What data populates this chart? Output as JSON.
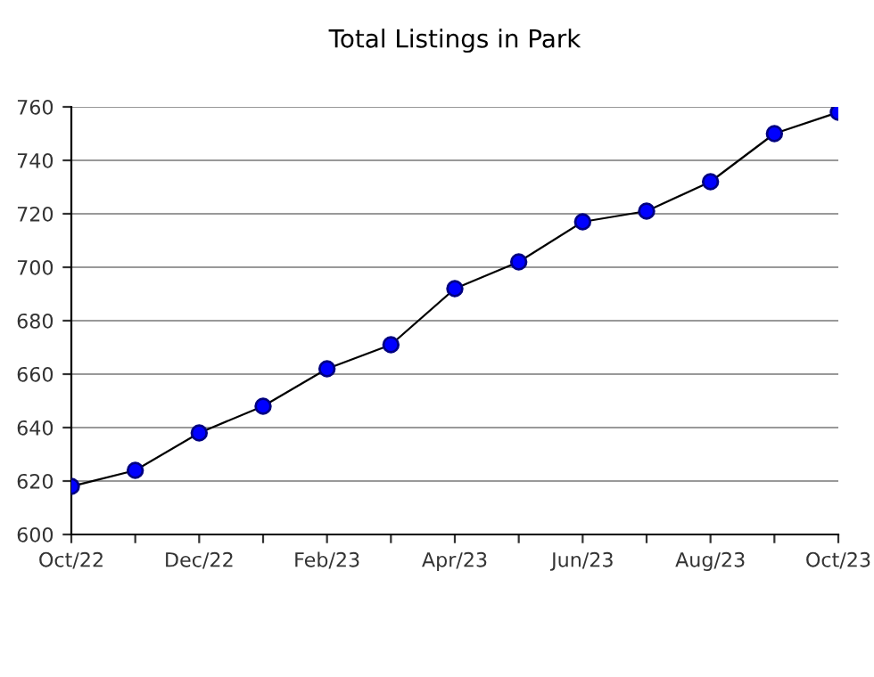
{
  "chart_data": {
    "type": "line",
    "title": "Total Listings in Park",
    "categories": [
      "Oct/22",
      null,
      "Dec/22",
      null,
      "Feb/23",
      null,
      "Apr/23",
      null,
      "Jun/23",
      null,
      "Aug/23",
      null,
      "Oct/23"
    ],
    "series": [
      {
        "color": "#0000ff",
        "values": [
          618,
          624,
          638,
          648,
          662,
          671,
          692,
          702,
          717,
          721,
          732,
          750,
          758
        ]
      }
    ],
    "ylim": [
      600,
      760
    ],
    "yticks": [
      600,
      620,
      640,
      660,
      680,
      700,
      720,
      740,
      760
    ],
    "grid": "y",
    "marker": "circle",
    "line_style": "solid",
    "legend": false
  }
}
